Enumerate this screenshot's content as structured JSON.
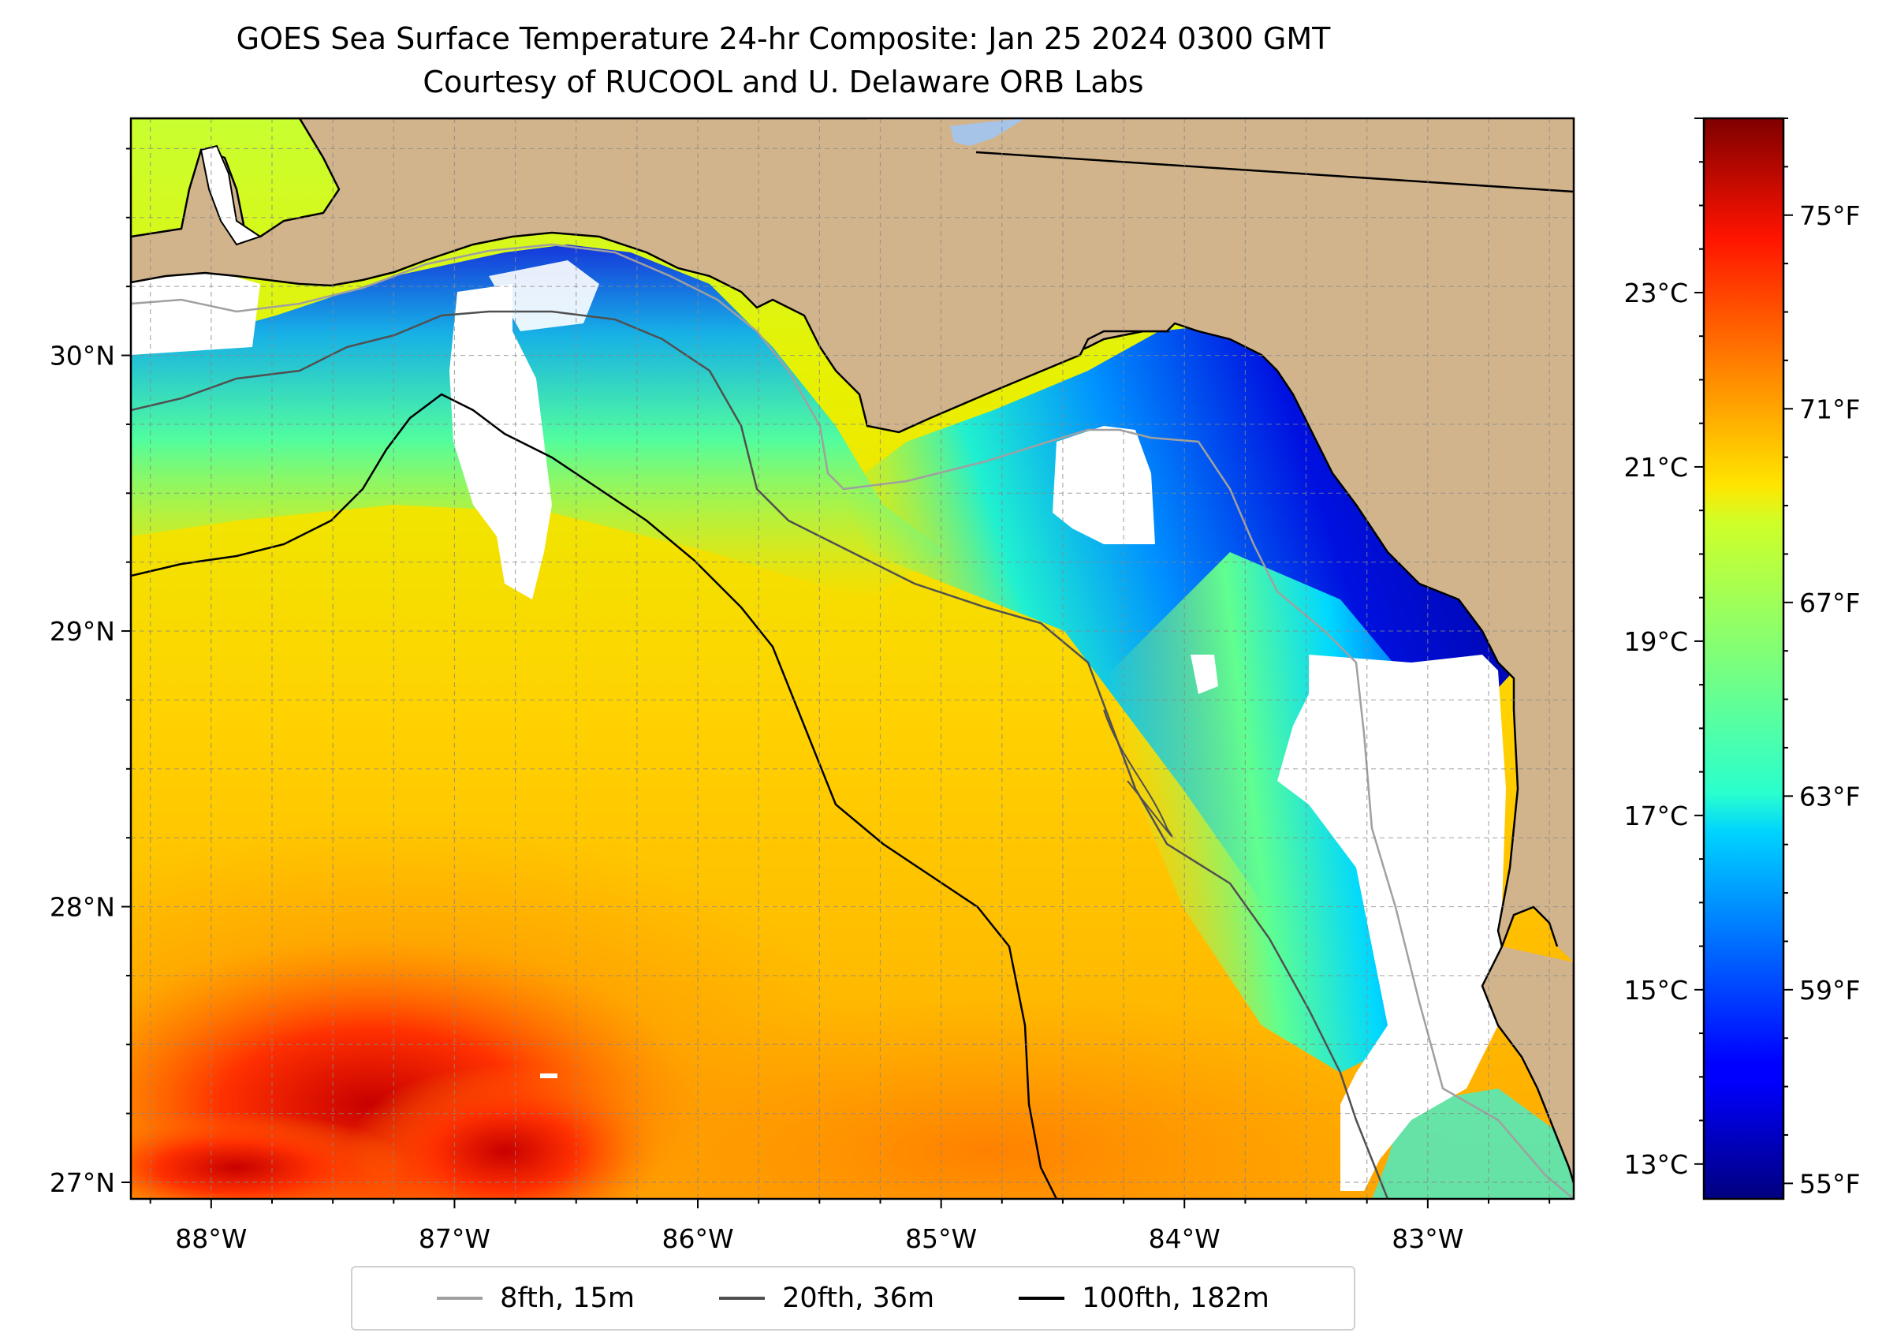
{
  "title": "GOES Sea Surface Temperature 24-hr Composite: Jan 25 2024 0300 GMT",
  "subtitle": "Courtesy of RUCOOL and U. Delaware ORB Labs",
  "map": {
    "projection": "PlateCarree",
    "extent": {
      "lon_min": -88.33,
      "lon_max": -82.4,
      "lat_min": 26.94,
      "lat_max": 30.86
    },
    "land_color": "#d2b48c",
    "nodata_color": "#ffffff",
    "gridlines": "dashed light grey",
    "lon_ticks": [
      {
        "value": -88,
        "label": "88°W"
      },
      {
        "value": -87,
        "label": "87°W"
      },
      {
        "value": -86,
        "label": "86°W"
      },
      {
        "value": -85,
        "label": "85°W"
      },
      {
        "value": -84,
        "label": "84°W"
      },
      {
        "value": -83,
        "label": "83°W"
      }
    ],
    "lat_ticks": [
      {
        "value": 30,
        "label": "30°N"
      },
      {
        "value": 29,
        "label": "29°N"
      },
      {
        "value": 28,
        "label": "28°N"
      },
      {
        "value": 27,
        "label": "27°N"
      }
    ]
  },
  "colorbar": {
    "colormap": "jet",
    "range_celsius": [
      12.6,
      25.0
    ],
    "celsius_ticks": [
      {
        "value": 13,
        "label": "13°C"
      },
      {
        "value": 15,
        "label": "15°C"
      },
      {
        "value": 17,
        "label": "17°C"
      },
      {
        "value": 19,
        "label": "19°C"
      },
      {
        "value": 21,
        "label": "21°C"
      },
      {
        "value": 23,
        "label": "23°C"
      }
    ],
    "fahrenheit_ticks": [
      {
        "value": 55,
        "label": "55°F"
      },
      {
        "value": 59,
        "label": "59°F"
      },
      {
        "value": 63,
        "label": "63°F"
      },
      {
        "value": 67,
        "label": "67°F"
      },
      {
        "value": 71,
        "label": "71°F"
      },
      {
        "value": 75,
        "label": "75°F"
      }
    ]
  },
  "legend": {
    "placement": "bottom-center",
    "items": [
      {
        "label": "8fth, 15m",
        "color": "#a0a0a0"
      },
      {
        "label": "20fth, 36m",
        "color": "#505050"
      },
      {
        "label": "100fth, 182m",
        "color": "#000000"
      }
    ]
  }
}
